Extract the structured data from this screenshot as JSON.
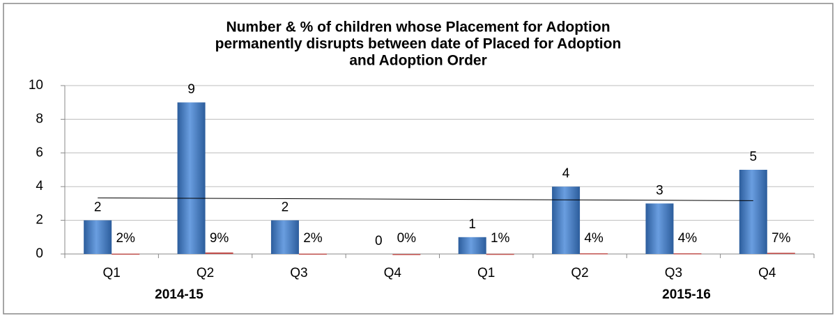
{
  "chart_data": {
    "type": "bar",
    "title": [
      "Number & %  of children whose Placement for Adoption",
      "permanently disrupts between date of Placed for Adoption",
      "and Adoption Order"
    ],
    "categories": [
      "Q1",
      "Q2",
      "Q3",
      "Q4",
      "Q1",
      "Q2",
      "Q3",
      "Q4"
    ],
    "groups": [
      "2014-15",
      "2015-16"
    ],
    "series": [
      {
        "color": "#4a7ebb",
        "values": [
          2,
          9,
          2,
          0,
          1,
          4,
          3,
          5
        ]
      },
      {
        "color": "#c0504d",
        "values": [
          0.02,
          0.09,
          0.02,
          0,
          0.01,
          0.04,
          0.04,
          0.07
        ],
        "value_labels": [
          "2%",
          "9%",
          "2%",
          "0%",
          "1%",
          "4%",
          "4%",
          "7%"
        ]
      }
    ],
    "trendline": true,
    "ylim": [
      0,
      10
    ],
    "yticks": [
      0,
      2,
      4,
      6,
      8,
      10
    ],
    "grid": true
  }
}
